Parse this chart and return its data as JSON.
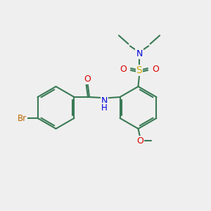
{
  "bg_color": "#efefef",
  "bond_color": "#3a7a55",
  "bond_lw": 1.5,
  "N_color": "#0000dd",
  "O_color": "#dd0000",
  "S_color": "#ccaa00",
  "Br_color": "#bb6600",
  "fs": 8.5,
  "xlim": [
    0,
    10
  ],
  "ylim": [
    0,
    10
  ]
}
